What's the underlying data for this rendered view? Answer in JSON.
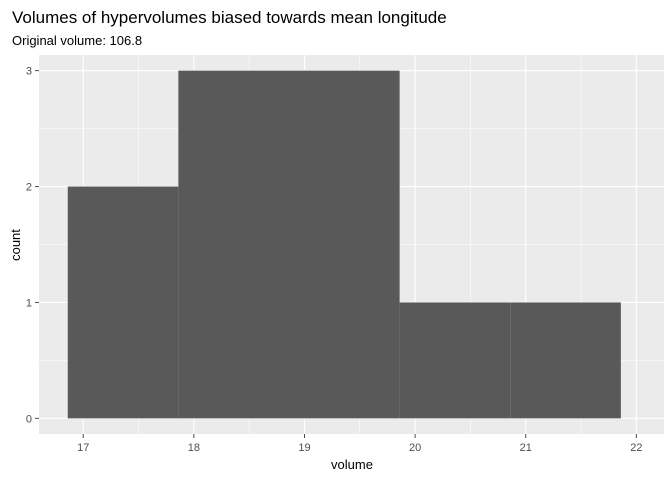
{
  "chart_data": {
    "type": "bar",
    "subtype": "histogram",
    "title": "Volumes of hypervolumes biased towards mean longitude",
    "subtitle": "Original volume: 106.8",
    "xlabel": "volume",
    "ylabel": "count",
    "xlim": [
      16.6,
      22.25
    ],
    "ylim": [
      -0.135,
      3.135
    ],
    "xticks": [
      17,
      18,
      19,
      20,
      21,
      22
    ],
    "yticks": [
      0,
      1,
      2,
      3
    ],
    "grid": true,
    "legend": "none",
    "bins": [
      {
        "x0": 16.86,
        "x1": 17.86,
        "count": 2
      },
      {
        "x0": 17.86,
        "x1": 18.86,
        "count": 3
      },
      {
        "x0": 18.86,
        "x1": 19.86,
        "count": 3
      },
      {
        "x0": 19.86,
        "x1": 20.86,
        "count": 1
      },
      {
        "x0": 20.86,
        "x1": 21.86,
        "count": 1
      }
    ],
    "colors": {
      "panel": "#ebebeb",
      "grid": "#ffffff",
      "bar": "#595959",
      "tick": "#4d4d4d"
    }
  }
}
